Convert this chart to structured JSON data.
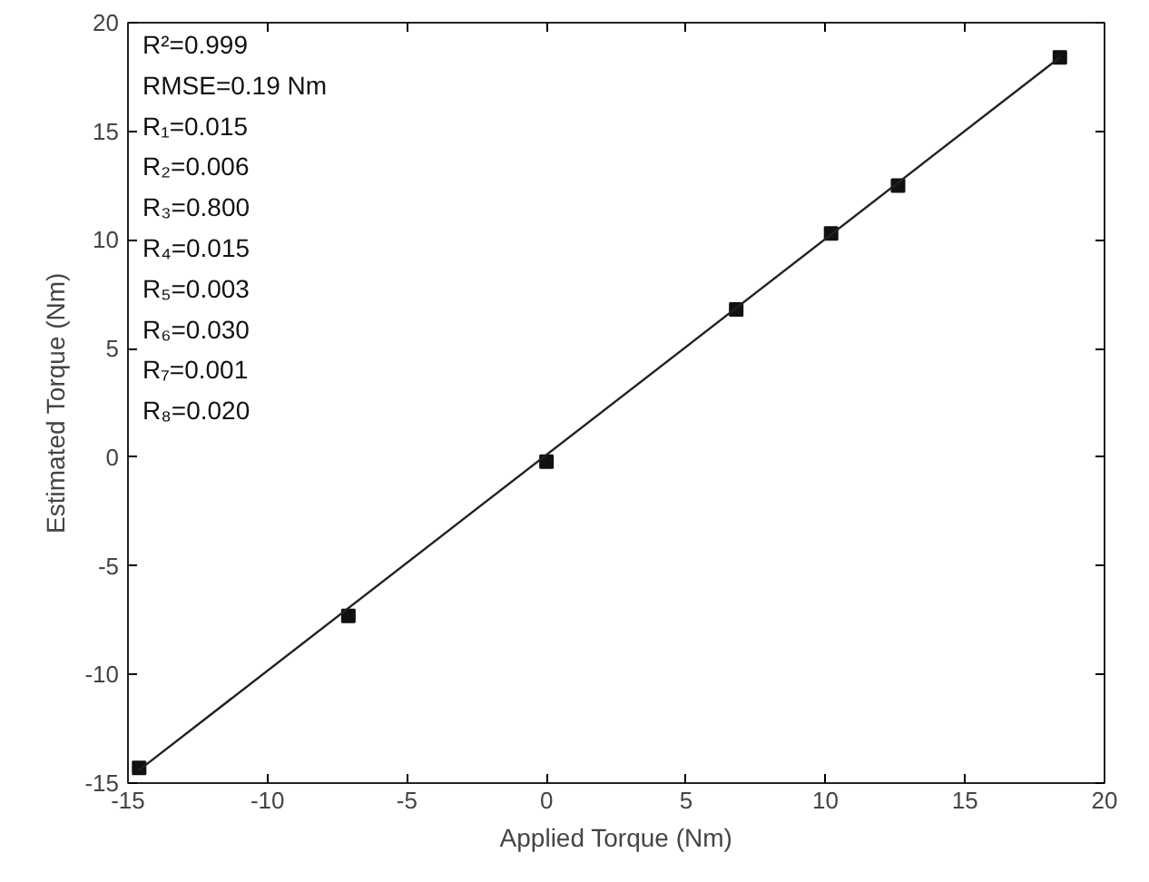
{
  "chart_data": {
    "type": "scatter",
    "xlabel": "Applied Torque (Nm)",
    "ylabel": "Estimated Torque (Nm)",
    "x": [
      -14.6,
      -7.1,
      0,
      6.8,
      10.2,
      12.6,
      18.4
    ],
    "series": [
      {
        "color": "#111111",
        "marker": "square",
        "values": [
          -14.3,
          -7.3,
          -0.2,
          6.8,
          10.3,
          12.5,
          18.4
        ]
      },
      {
        "type": "line",
        "color": "#222222",
        "x": [
          -14.6,
          18.4
        ],
        "values": [
          -14.4,
          18.4
        ],
        "line_style": "solid"
      }
    ],
    "xlim": [
      -15,
      20
    ],
    "ylim": [
      -15,
      20
    ],
    "xticks": [
      -15,
      -10,
      -5,
      0,
      5,
      10,
      15,
      20
    ],
    "yticks": [
      -15,
      -10,
      -5,
      0,
      5,
      10,
      15,
      20
    ],
    "grid": false,
    "annotations": [
      "R²=0.999",
      "RMSE=0.19 Nm",
      "R₁=0.015",
      "R₂=0.006",
      "R₃=0.800",
      "R₄=0.015",
      "R₅=0.003",
      "R₆=0.030",
      "R₇=0.001",
      "R₈=0.020"
    ]
  }
}
